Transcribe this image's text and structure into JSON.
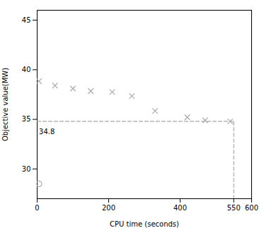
{
  "chart_data": {
    "type": "scatter",
    "xlabel": "CPU time (seconds)",
    "ylabel": "Objective value(MW)",
    "xlim": [
      0,
      600
    ],
    "ylim": [
      27,
      46
    ],
    "xticks": [
      0,
      200,
      400,
      550,
      600
    ],
    "yticks": [
      30,
      35,
      40,
      45
    ],
    "grid": false,
    "series": [
      {
        "type": "scatter",
        "marker": "x",
        "color": "#aaaaaa",
        "x": [
          5,
          50,
          100,
          150,
          210,
          265,
          330,
          420,
          470,
          540
        ],
        "values": [
          38.85,
          38.4,
          38.1,
          37.85,
          37.75,
          37.35,
          35.85,
          35.2,
          34.9,
          34.8
        ]
      },
      {
        "type": "scatter",
        "marker": "circle",
        "color": "#aaaaaa",
        "x": [
          5
        ],
        "values": [
          28.5
        ]
      },
      {
        "type": "line",
        "line_style": "dashed",
        "color": "#aaaaaa",
        "x": [
          0,
          550
        ],
        "values": [
          34.8,
          34.8
        ]
      },
      {
        "type": "line",
        "line_style": "dashed",
        "color": "#aaaaaa",
        "x": [
          550,
          550
        ],
        "values": [
          27,
          34.8
        ]
      }
    ],
    "annotations": [
      {
        "text": "34.8",
        "x": 5,
        "y": 33.5
      }
    ]
  }
}
